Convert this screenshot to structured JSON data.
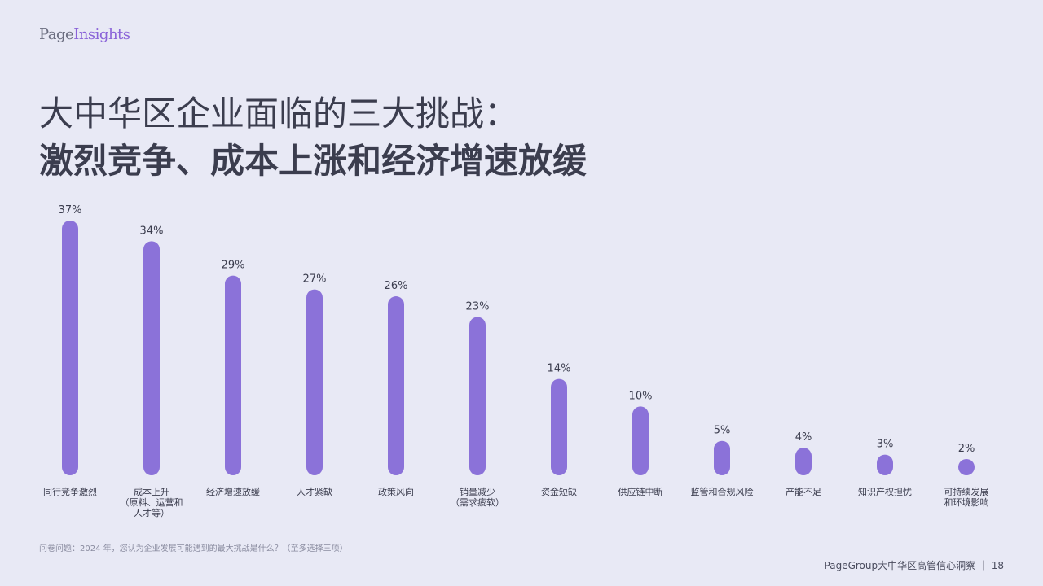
{
  "logo": {
    "part1": "Page",
    "part2": "Insights"
  },
  "title": {
    "line1": "大中华区企业面临的三大挑战：",
    "line2": "激烈竞争、成本上涨和经济增速放缓"
  },
  "chart_data": {
    "type": "bar",
    "categories": [
      [
        "同行竞争激烈"
      ],
      [
        "成本上升",
        "（原料、运营和",
        "人才等）"
      ],
      [
        "经济增速放缓"
      ],
      [
        "人才紧缺"
      ],
      [
        "政策风向"
      ],
      [
        "销量减少",
        "（需求疲软）"
      ],
      [
        "资金短缺"
      ],
      [
        "供应链中断"
      ],
      [
        "监管和合规风险"
      ],
      [
        "产能不足"
      ],
      [
        "知识产权担忧"
      ],
      [
        "可持续发展",
        "和环境影响"
      ]
    ],
    "values": [
      37,
      34,
      29,
      27,
      26,
      23,
      14,
      10,
      5,
      4,
      3,
      2
    ],
    "value_labels": [
      "37%",
      "34%",
      "29%",
      "27%",
      "26%",
      "23%",
      "14%",
      "10%",
      "5%",
      "4%",
      "3%",
      "2%"
    ],
    "bar_color": "#8b72d9",
    "ylim": [
      0,
      37
    ]
  },
  "footnote": "问卷问题：2024 年，您认为企业发展可能遇到的最大挑战是什么？（至多选择三项）",
  "footer": "PageGroup大中华区高管信心洞察 ｜ 18"
}
